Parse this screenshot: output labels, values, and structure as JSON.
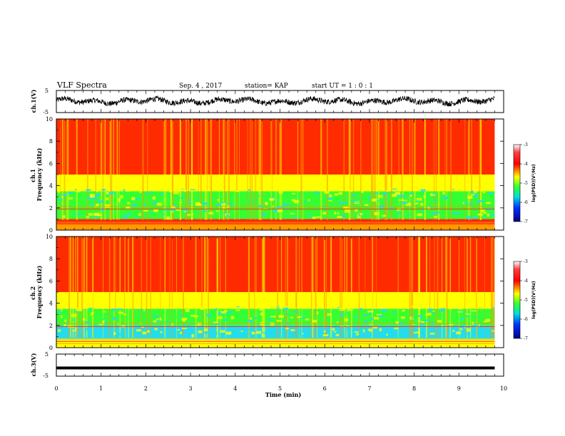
{
  "header": {
    "title": "VLF Spectra",
    "date": "Sep. 4 , 2017",
    "station": "station= KAP",
    "start": "start UT =  1 : 0 : 1"
  },
  "colors": {
    "red": "#ff2a00",
    "orange": "#ff9900",
    "yellow": "#ffff00",
    "green": "#33ff33",
    "cyan": "#22ddee",
    "blue": "#0033ff",
    "navy": "#000088",
    "white": "#ffffff",
    "black": "#000000"
  },
  "chart_data": [
    {
      "type": "line",
      "name": "ch1-waveform",
      "ylabel": "ch.1(V)",
      "ylim": [
        -5,
        5
      ],
      "yticks": [
        "5",
        "-5"
      ],
      "x_range_min": [
        0,
        9.8
      ],
      "approx_level_v": [
        -1.5,
        1.5
      ]
    },
    {
      "type": "heatmap",
      "name": "ch1-spectrogram",
      "ylabel": "ch.1 Frequency (kHz)",
      "ylim": [
        0,
        10
      ],
      "yticks": [
        "0",
        "2",
        "4",
        "6",
        "8",
        "10"
      ],
      "x_range_min": [
        0,
        9.8
      ],
      "bands": [
        {
          "from_khz": 0.0,
          "to_khz": 0.6,
          "level": "orange"
        },
        {
          "from_khz": 0.6,
          "to_khz": 1.0,
          "level": "red"
        },
        {
          "from_khz": 1.0,
          "to_khz": 3.5,
          "level": "green"
        },
        {
          "from_khz": 3.5,
          "to_khz": 5.0,
          "level": "yellow"
        },
        {
          "from_khz": 5.0,
          "to_khz": 10.0,
          "level": "red"
        }
      ],
      "colorbar": {
        "label": "log(PSD)(V²/Hz)",
        "ticks": [
          "-3",
          "-4",
          "-5",
          "-6",
          "-7"
        ],
        "range": [
          -7,
          -3
        ]
      }
    },
    {
      "type": "heatmap",
      "name": "ch2-spectrogram",
      "ylabel": "ch.2 Frequency (kHz)",
      "ylim": [
        0,
        10
      ],
      "yticks": [
        "0",
        "2",
        "4",
        "6",
        "8",
        "10"
      ],
      "x_range_min": [
        0,
        9.8
      ],
      "bands": [
        {
          "from_khz": 0.0,
          "to_khz": 0.8,
          "level": "yellow"
        },
        {
          "from_khz": 0.8,
          "to_khz": 2.0,
          "level": "cyan"
        },
        {
          "from_khz": 2.0,
          "to_khz": 3.5,
          "level": "green"
        },
        {
          "from_khz": 3.5,
          "to_khz": 5.0,
          "level": "yellow"
        },
        {
          "from_khz": 5.0,
          "to_khz": 10.0,
          "level": "red"
        }
      ],
      "colorbar": {
        "label": "log(PSD)(V²/Hz)",
        "ticks": [
          "-3",
          "-4",
          "-5",
          "-6",
          "-7"
        ],
        "range": [
          -7,
          -3
        ]
      }
    },
    {
      "type": "line",
      "name": "ch3-waveform",
      "ylabel": "ch.3(V)",
      "ylim": [
        -5,
        5
      ],
      "yticks": [
        "5",
        "-5"
      ],
      "x_range_min": [
        0,
        9.8
      ],
      "constant_v": -1.5
    }
  ],
  "x_axis": {
    "label": "Time (min)",
    "ticks": [
      "0",
      "1",
      "2",
      "3",
      "4",
      "5",
      "6",
      "7",
      "8",
      "9",
      "10"
    ],
    "range": [
      0,
      10
    ]
  }
}
